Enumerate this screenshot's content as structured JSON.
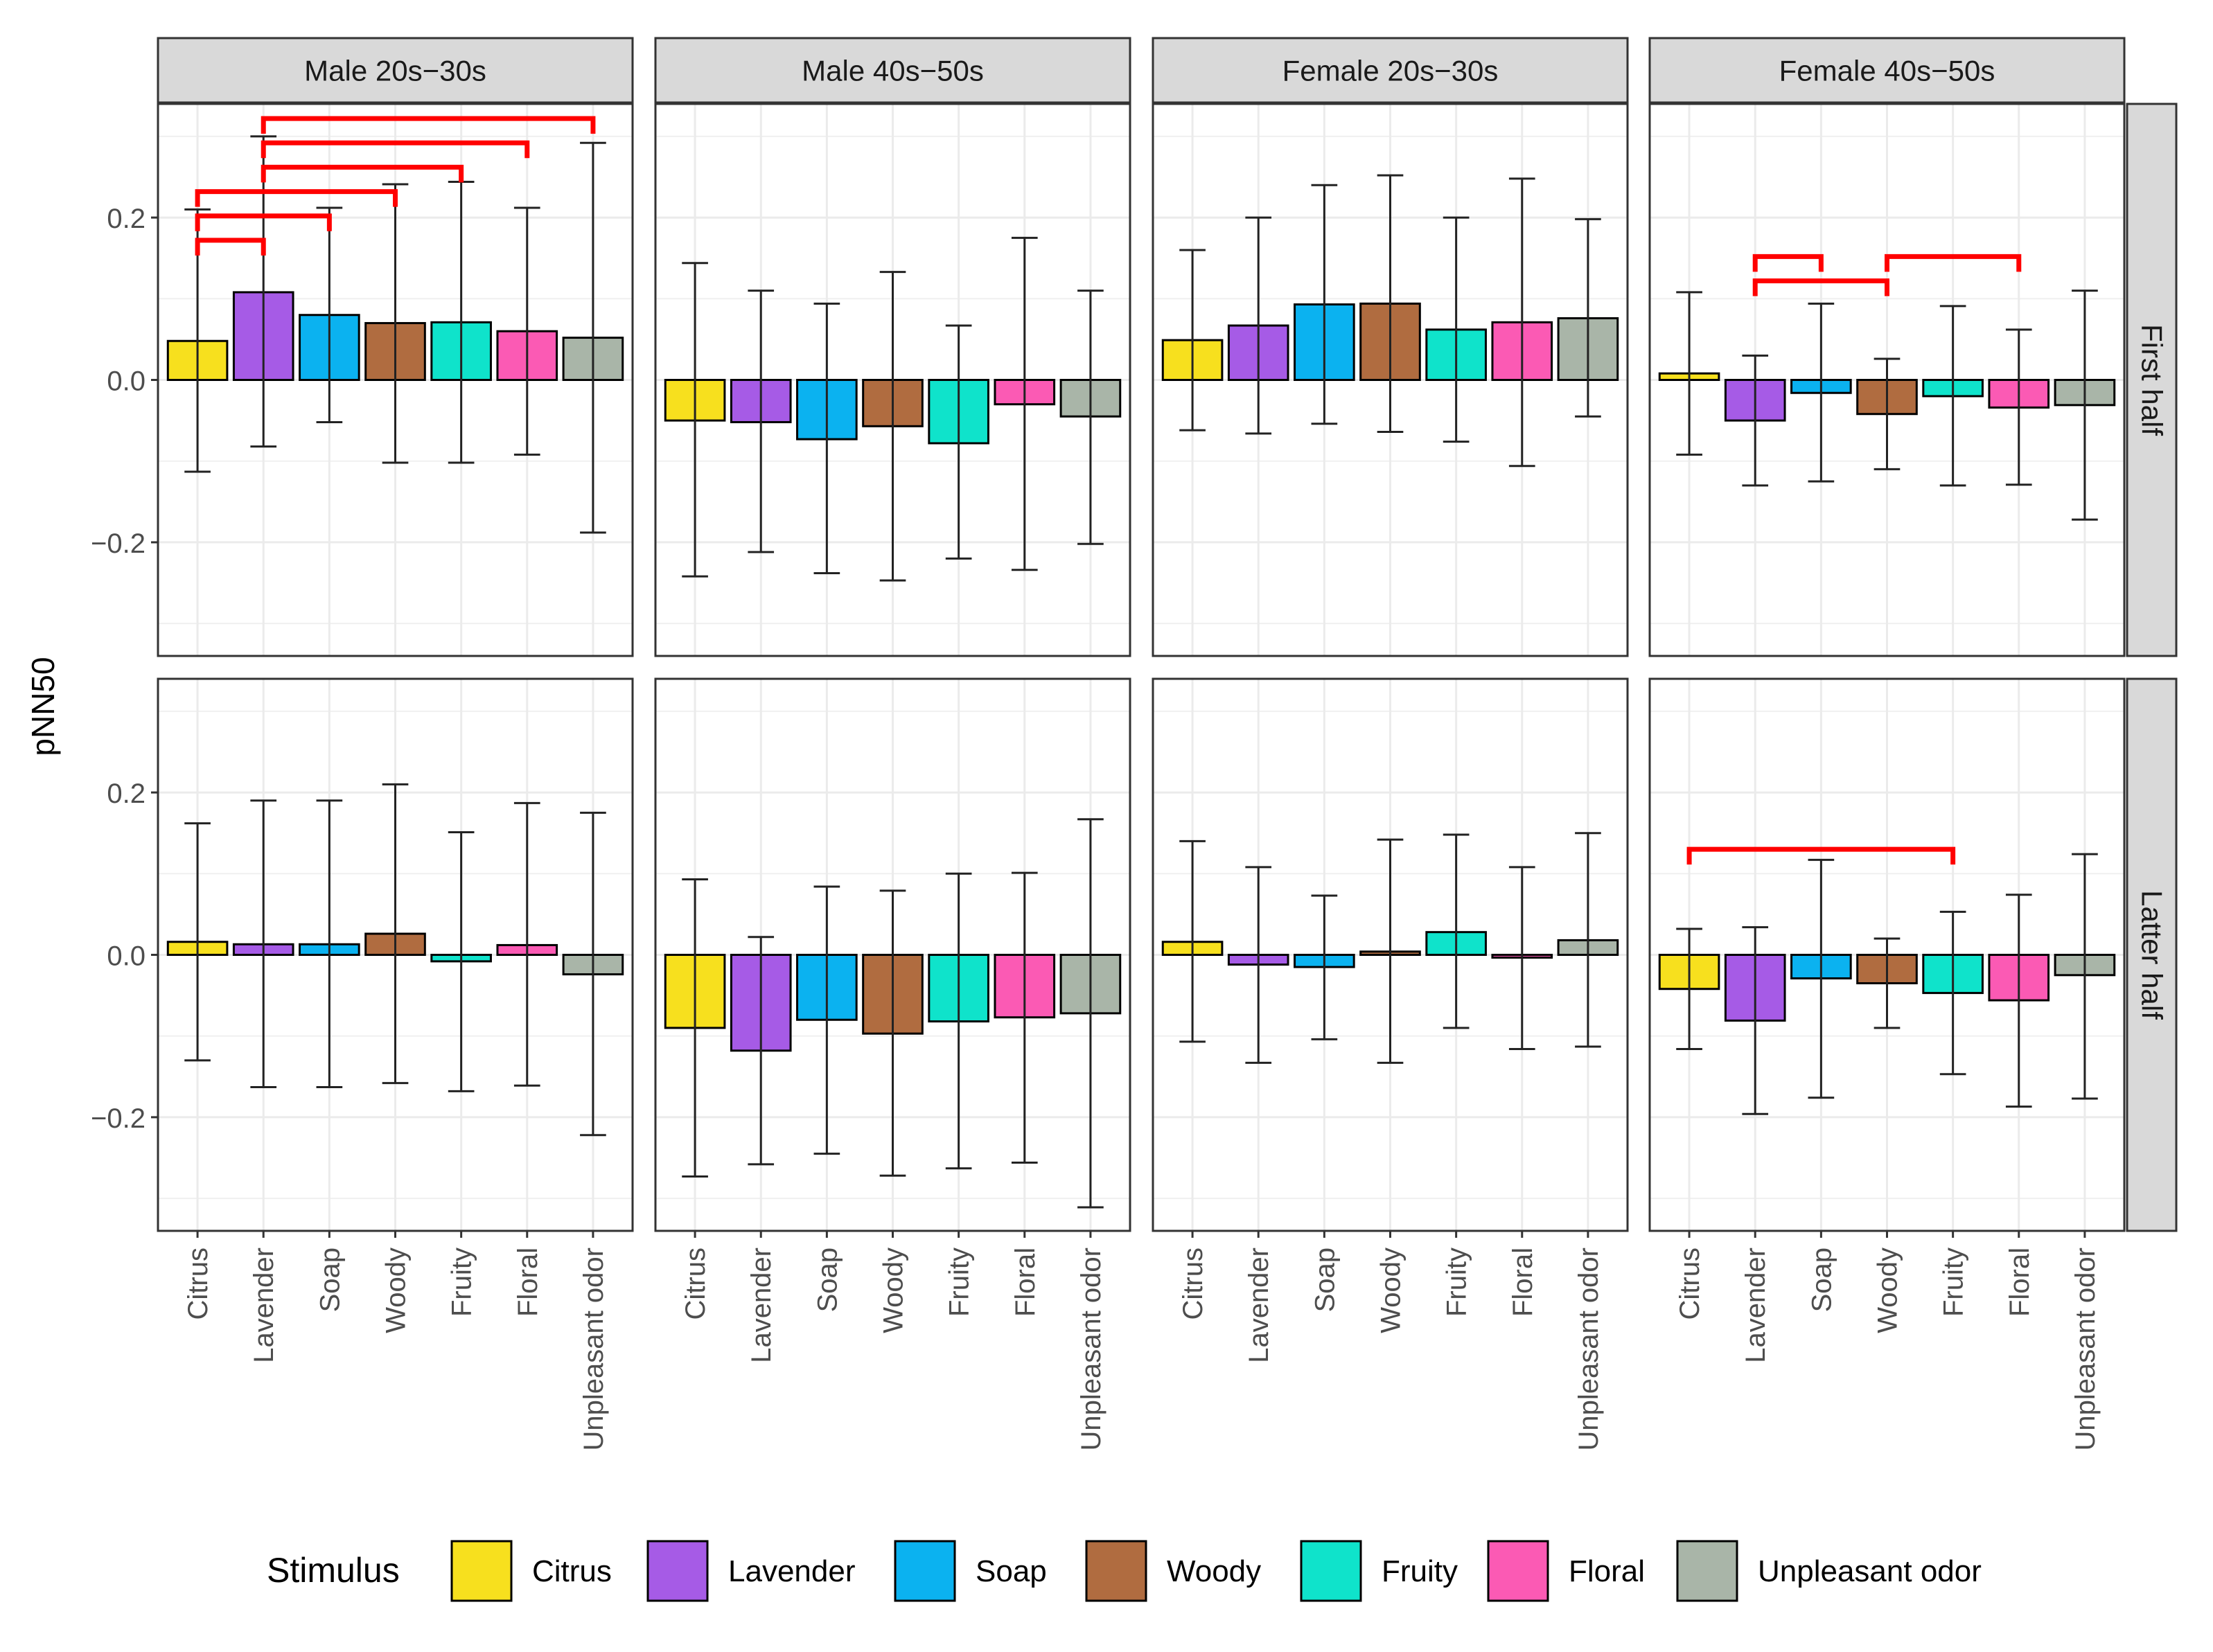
{
  "chart_data": {
    "type": "bar",
    "ylabel": "pNN50",
    "ylim": [
      -0.34,
      0.34
    ],
    "yticks": [
      -0.2,
      0.0,
      0.2
    ],
    "ytick_labels": [
      "−0.2",
      "0.0",
      "0.2"
    ],
    "grid": true,
    "categories": [
      "Citrus",
      "Lavender",
      "Soap",
      "Woody",
      "Fruity",
      "Floral",
      "Unpleasant odor"
    ],
    "column_facets": [
      "Male 20s−30s",
      "Male 40s−50s",
      "Female 20s−30s",
      "Female 40s−50s"
    ],
    "row_facets": [
      "First half",
      "Latter half"
    ],
    "colors": {
      "Citrus": "#F7E01E",
      "Lavender": "#A65BE6",
      "Soap": "#0BB2F0",
      "Woody": "#B06C40",
      "Fruity": "#0FE3CB",
      "Floral": "#FB5AB4",
      "Unpleasant odor": "#A9B5A8"
    },
    "sig_color": "#FF0000",
    "panels": [
      {
        "column": "Male 20s−30s",
        "row": "First half",
        "values": [
          0.048,
          0.108,
          0.08,
          0.07,
          0.071,
          0.06,
          0.052
        ],
        "err_low": [
          -0.113,
          -0.082,
          -0.052,
          -0.102,
          -0.102,
          -0.092,
          -0.188
        ],
        "err_high": [
          0.21,
          0.3,
          0.212,
          0.241,
          0.244,
          0.212,
          0.292
        ],
        "sig_brackets": [
          {
            "from": "Citrus",
            "to": "Lavender",
            "y": 0.172
          },
          {
            "from": "Citrus",
            "to": "Soap",
            "y": 0.202
          },
          {
            "from": "Citrus",
            "to": "Woody",
            "y": 0.232
          },
          {
            "from": "Lavender",
            "to": "Fruity",
            "y": 0.262
          },
          {
            "from": "Lavender",
            "to": "Floral",
            "y": 0.292
          },
          {
            "from": "Lavender",
            "to": "Unpleasant odor",
            "y": 0.322
          }
        ]
      },
      {
        "column": "Male 40s−50s",
        "row": "First half",
        "values": [
          -0.05,
          -0.052,
          -0.073,
          -0.057,
          -0.078,
          -0.03,
          -0.045
        ],
        "err_low": [
          -0.242,
          -0.212,
          -0.238,
          -0.247,
          -0.22,
          -0.234,
          -0.202
        ],
        "err_high": [
          0.144,
          0.11,
          0.094,
          0.133,
          0.067,
          0.175,
          0.11
        ],
        "sig_brackets": []
      },
      {
        "column": "Female 20s−30s",
        "row": "First half",
        "values": [
          0.049,
          0.067,
          0.093,
          0.094,
          0.062,
          0.071,
          0.076
        ],
        "err_low": [
          -0.062,
          -0.066,
          -0.054,
          -0.064,
          -0.076,
          -0.106,
          -0.045
        ],
        "err_high": [
          0.16,
          0.2,
          0.24,
          0.252,
          0.2,
          0.248,
          0.198
        ],
        "sig_brackets": []
      },
      {
        "column": "Female 40s−50s",
        "row": "First half",
        "values": [
          0.008,
          -0.05,
          -0.016,
          -0.042,
          -0.02,
          -0.034,
          -0.031
        ],
        "err_low": [
          -0.092,
          -0.13,
          -0.125,
          -0.11,
          -0.13,
          -0.129,
          -0.172
        ],
        "err_high": [
          0.108,
          0.03,
          0.094,
          0.026,
          0.091,
          0.062,
          0.11
        ],
        "sig_brackets": [
          {
            "from": "Lavender",
            "to": "Soap",
            "y": 0.152
          },
          {
            "from": "Lavender",
            "to": "Woody",
            "y": 0.122
          },
          {
            "from": "Woody",
            "to": "Floral",
            "y": 0.152
          }
        ]
      },
      {
        "column": "Male 20s−30s",
        "row": "Latter half",
        "values": [
          0.016,
          0.013,
          0.013,
          0.026,
          -0.008,
          0.012,
          -0.024
        ],
        "err_low": [
          -0.13,
          -0.163,
          -0.163,
          -0.158,
          -0.168,
          -0.161,
          -0.222
        ],
        "err_high": [
          0.162,
          0.19,
          0.19,
          0.21,
          0.151,
          0.187,
          0.175
        ],
        "sig_brackets": []
      },
      {
        "column": "Male 40s−50s",
        "row": "Latter half",
        "values": [
          -0.09,
          -0.118,
          -0.08,
          -0.097,
          -0.082,
          -0.077,
          -0.072
        ],
        "err_low": [
          -0.273,
          -0.258,
          -0.245,
          -0.272,
          -0.263,
          -0.256,
          -0.311
        ],
        "err_high": [
          0.093,
          0.022,
          0.084,
          0.079,
          0.1,
          0.101,
          0.167
        ],
        "sig_brackets": []
      },
      {
        "column": "Female 20s−30s",
        "row": "Latter half",
        "values": [
          0.016,
          -0.012,
          -0.015,
          0.004,
          0.028,
          -0.003,
          0.018
        ],
        "err_low": [
          -0.107,
          -0.133,
          -0.104,
          -0.133,
          -0.09,
          -0.116,
          -0.113
        ],
        "err_high": [
          0.14,
          0.108,
          0.073,
          0.142,
          0.148,
          0.108,
          0.15
        ],
        "sig_brackets": []
      },
      {
        "column": "Female 40s−50s",
        "row": "Latter half",
        "values": [
          -0.042,
          -0.081,
          -0.029,
          -0.035,
          -0.047,
          -0.056,
          -0.025
        ],
        "err_low": [
          -0.116,
          -0.196,
          -0.176,
          -0.09,
          -0.147,
          -0.187,
          -0.177
        ],
        "err_high": [
          0.032,
          0.034,
          0.117,
          0.02,
          0.053,
          0.074,
          0.124
        ],
        "sig_brackets": [
          {
            "from": "Citrus",
            "to": "Fruity",
            "y": 0.13
          }
        ]
      }
    ],
    "legend": {
      "title": "Stimulus",
      "position": "bottom",
      "items": [
        "Citrus",
        "Lavender",
        "Soap",
        "Woody",
        "Fruity",
        "Floral",
        "Unpleasant odor"
      ]
    }
  }
}
